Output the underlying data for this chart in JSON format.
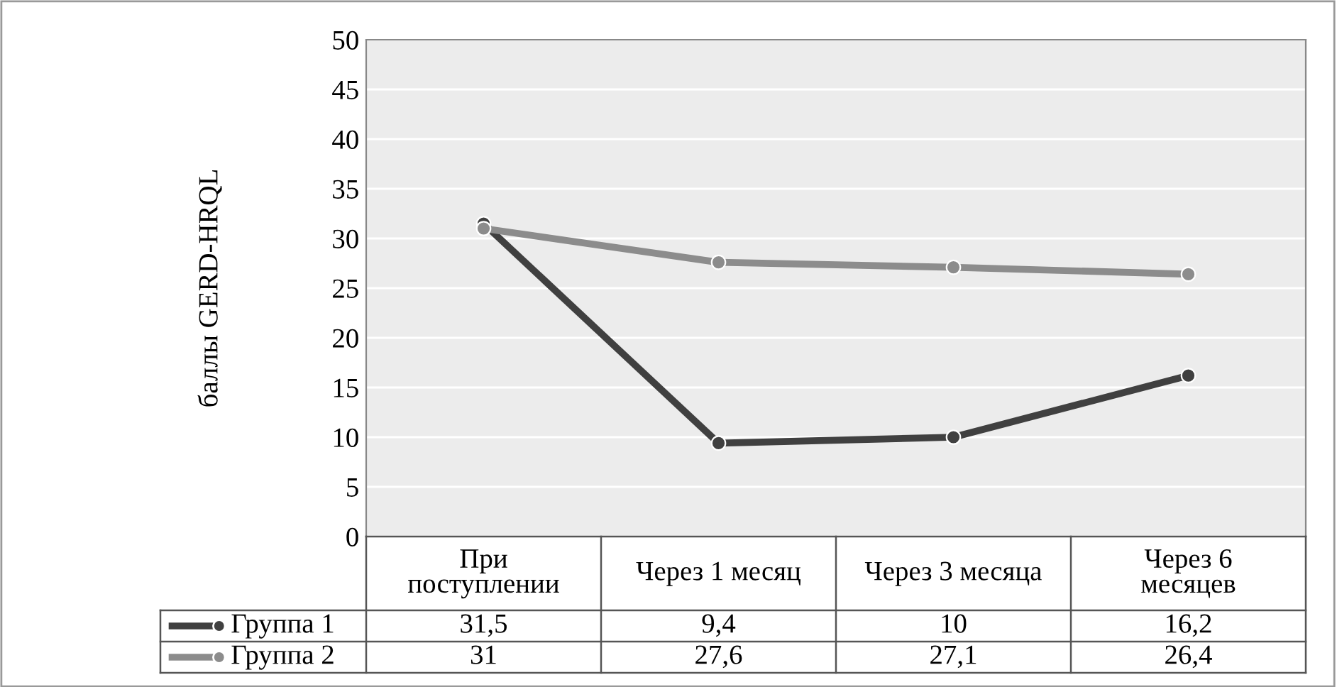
{
  "chart_data": {
    "type": "line",
    "ylabel": "баллы GERD-HRQL",
    "categories": [
      "При поступлении",
      "Через 1 месяц",
      "Через 3 месяца",
      "Через 6 месяцев"
    ],
    "series": [
      {
        "name": "Группа 1",
        "color": "#404040",
        "values": [
          31.5,
          9.4,
          10,
          16.2
        ],
        "value_labels": [
          "31,5",
          "9,4",
          "10",
          "16,2"
        ]
      },
      {
        "name": "Группа 2",
        "color": "#8c8c8c",
        "values": [
          31,
          27.6,
          27.1,
          26.4
        ],
        "value_labels": [
          "31",
          "27,6",
          "27,1",
          "26,4"
        ]
      }
    ],
    "ylim": [
      0,
      50
    ],
    "yticks": [
      0,
      5,
      10,
      15,
      20,
      25,
      30,
      35,
      40,
      45,
      50
    ],
    "grid": "y",
    "marker": "circle",
    "line_style": "solid",
    "legend": "bottom"
  }
}
